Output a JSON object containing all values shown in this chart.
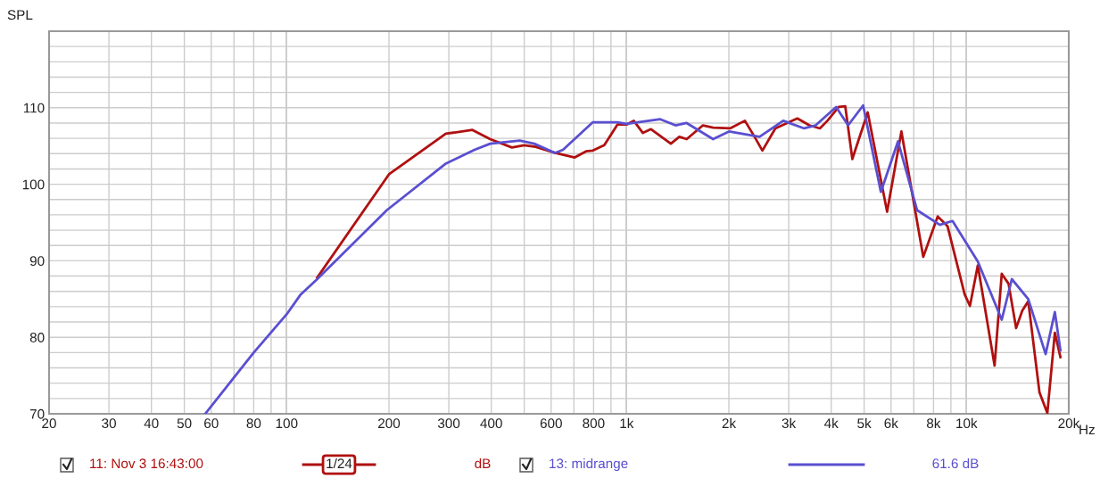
{
  "chart_data": {
    "type": "line",
    "ylabel": "SPL",
    "log": "x",
    "grid": true,
    "legend": "bottom",
    "line_style": "solid",
    "marker": "none",
    "xlim": [
      20,
      20000
    ],
    "ylim": [
      70,
      120
    ],
    "xticks": [
      20,
      30,
      40,
      50,
      60,
      {
        "value": 70,
        "label": null
      },
      80,
      {
        "value": 90,
        "label": null
      },
      100,
      200,
      300,
      400,
      {
        "value": 500,
        "label": null
      },
      600,
      {
        "value": 700,
        "label": null
      },
      800,
      {
        "value": 900,
        "label": null
      },
      {
        "value": 1000,
        "label": "1k"
      },
      {
        "value": 2000,
        "label": "2k"
      },
      {
        "value": 3000,
        "label": "3k"
      },
      {
        "value": 4000,
        "label": "4k"
      },
      {
        "value": 5000,
        "label": "5k"
      },
      {
        "value": 6000,
        "label": "6k"
      },
      {
        "value": 7000,
        "label": null
      },
      {
        "value": 8000,
        "label": "8k"
      },
      {
        "value": 9000,
        "label": null
      },
      {
        "value": 10000,
        "label": "10k"
      },
      {
        "value": 20000,
        "label": "20k"
      }
    ],
    "xlabel": "Hz",
    "yticks": [
      70,
      {
        "value": 72,
        "label": null
      },
      {
        "value": 74,
        "label": null
      },
      {
        "value": 76,
        "label": null
      },
      {
        "value": 78,
        "label": null
      },
      80,
      {
        "value": 82,
        "label": null
      },
      {
        "value": 84,
        "label": null
      },
      {
        "value": 86,
        "label": null
      },
      {
        "value": 88,
        "label": null
      },
      90,
      {
        "value": 92,
        "label": null
      },
      {
        "value": 94,
        "label": null
      },
      {
        "value": 96,
        "label": null
      },
      {
        "value": 98,
        "label": null
      },
      100,
      {
        "value": 102,
        "label": null
      },
      {
        "value": 104,
        "label": null
      },
      {
        "value": 106,
        "label": null
      },
      {
        "value": 108,
        "label": null
      },
      110,
      {
        "value": 112,
        "label": null
      },
      {
        "value": 114,
        "label": null
      },
      {
        "value": 116,
        "label": null
      },
      {
        "value": 118,
        "label": null
      }
    ],
    "series": [
      {
        "name": "11: Nov 3 16:43:00",
        "color": "#b01010",
        "x": [
          123,
          200,
          294,
          352,
          397,
          460,
          500,
          540,
          616,
          704,
          760,
          796,
          860,
          940,
          1000,
          1050,
          1117,
          1180,
          1350,
          1430,
          1503,
          1678,
          1797,
          2016,
          2229,
          2380,
          2510,
          2740,
          3180,
          3450,
          3705,
          3900,
          4208,
          4400,
          4616,
          5123,
          5842,
          6436,
          7462,
          8230,
          8800,
          9880,
          10240,
          10800,
          12100,
          12700,
          13300,
          14000,
          14600,
          15200,
          16400,
          17300,
          18200,
          18900
        ],
        "values": [
          87.8,
          101.3,
          106.6,
          107.1,
          105.9,
          104.8,
          105.1,
          104.9,
          104.1,
          103.5,
          104.3,
          104.4,
          105.1,
          107.8,
          107.8,
          108.3,
          106.7,
          107.2,
          105.3,
          106.2,
          105.9,
          107.7,
          107.4,
          107.3,
          108.3,
          106.2,
          104.4,
          107.3,
          108.6,
          107.7,
          107.3,
          108.3,
          110.1,
          110.2,
          103.3,
          109.4,
          96.4,
          106.9,
          90.5,
          95.8,
          94.5,
          85.6,
          84.1,
          89.4,
          76.3,
          88.3,
          87.0,
          81.2,
          83.5,
          84.7,
          72.8,
          70.1,
          80.6,
          77.4
        ]
      },
      {
        "name": "13: midrange",
        "color": "#5a4fd0",
        "x": [
          57.6,
          80,
          100,
          110,
          123,
          197,
          294,
          357,
          397,
          485,
          535,
          616,
          650,
          796,
          940,
          1000,
          1257,
          1393,
          1503,
          1797,
          2001,
          2462,
          2890,
          3330,
          3600,
          4136,
          4486,
          4966,
          5600,
          6290,
          7160,
          8350,
          9100,
          10800,
          12700,
          13600,
          15200,
          17100,
          18200,
          18900
        ],
        "values": [
          70,
          78,
          83,
          85.6,
          87.6,
          96.6,
          102.7,
          104.5,
          105.3,
          105.7,
          105.3,
          104.1,
          104.5,
          108.1,
          108.1,
          107.9,
          108.5,
          107.7,
          108.0,
          105.9,
          106.9,
          106.2,
          108.3,
          107.3,
          107.7,
          110.1,
          107.7,
          110.3,
          99.0,
          105.6,
          96.6,
          94.7,
          95.2,
          89.9,
          82.3,
          87.6,
          85.0,
          77.8,
          83.3,
          78.3
        ]
      }
    ],
    "annotations": [
      "1/24",
      "dB",
      "61.6 dB"
    ]
  }
}
